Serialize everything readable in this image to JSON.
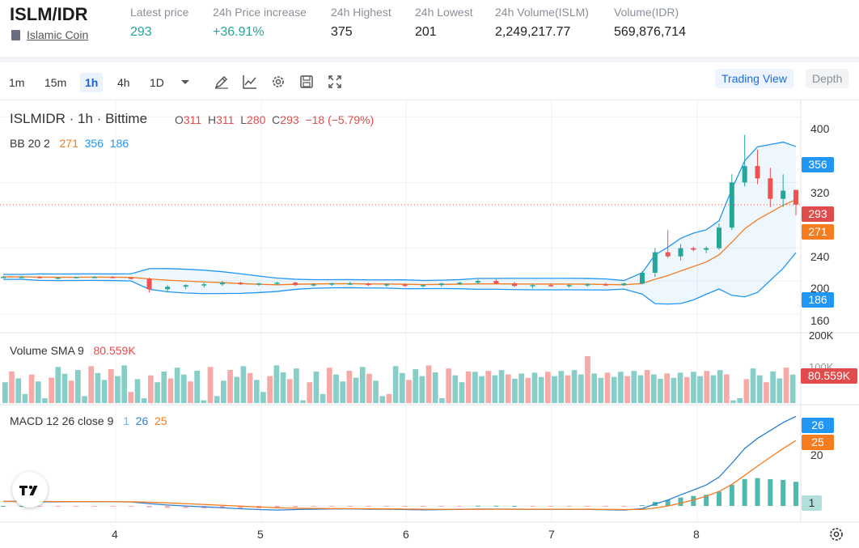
{
  "header": {
    "pair": "ISLM/IDR",
    "coin_name": "Islamic Coin",
    "stats": [
      {
        "label": "Latest price",
        "value": "293",
        "tone": "green"
      },
      {
        "label": "24h Price increase",
        "value": "+36.91%",
        "tone": "green"
      },
      {
        "label": "24h Highest",
        "value": "375",
        "tone": "normal"
      },
      {
        "label": "24h Lowest",
        "value": "201",
        "tone": "normal"
      },
      {
        "label": "24h Volume(ISLM)",
        "value": "2,249,217.77",
        "tone": "normal"
      },
      {
        "label": "Volume(IDR)",
        "value": "569,876,714",
        "tone": "normal"
      }
    ]
  },
  "toolbar": {
    "timeframes": [
      "1m",
      "15m",
      "1h",
      "4h",
      "1D"
    ],
    "active_timeframe": "1h",
    "icons": [
      "chevron-down-icon",
      "pencil-icon",
      "indicator-icon",
      "gear-icon",
      "save-icon",
      "fullscreen-icon"
    ],
    "view_tabs": [
      "Trading View",
      "Depth"
    ],
    "active_view": "Trading View"
  },
  "legend": {
    "symbol": "ISLMIDR · 1h · Bittime",
    "o_label": "O",
    "o": "311",
    "h_label": "H",
    "h": "311",
    "l_label": "L",
    "l": "280",
    "c_label": "C",
    "c": "293",
    "change": "−18 (−5.79%)",
    "bb_label": "BB 20 2",
    "bb_values": [
      "271",
      "356",
      "186"
    ],
    "vol_label": "Volume SMA 9",
    "vol_value": "80.559K",
    "macd_label": "MACD 12 26 close 9",
    "macd_values": [
      "1",
      "26",
      "25"
    ]
  },
  "axis": {
    "price_ticks": [
      "400",
      "320",
      "240",
      "200",
      "160"
    ],
    "volume_ticks": [
      "200K",
      "100K"
    ],
    "macd_ticks": [
      "20"
    ],
    "x_ticks": [
      "4",
      "5",
      "6",
      "7",
      "8"
    ],
    "tags": {
      "bb_upper": "356",
      "last_price": "293",
      "bb_basis": "271",
      "bb_lower": "186",
      "volume_sma": "80.559K",
      "macd": "26",
      "signal": "25",
      "histogram": "1"
    }
  },
  "colors": {
    "up": "#26a69a",
    "down": "#ef5350",
    "bb_basis": "#f57c1f",
    "bb_band": "#2196f3",
    "last_price": "#e04b4b",
    "accent": "#1a6fd8"
  },
  "chart_data": {
    "type": "candlestick",
    "symbol": "ISLMIDR",
    "interval": "1h",
    "x_ticks": [
      "4",
      "5",
      "6",
      "7",
      "8"
    ],
    "price_range": [
      140,
      420
    ],
    "candles_ohlc_sampled": [
      [
        205,
        206,
        204,
        205
      ],
      [
        205,
        206,
        204,
        205
      ],
      [
        205,
        206,
        203,
        204
      ],
      [
        204,
        205,
        203,
        204
      ],
      [
        204,
        205,
        203,
        205
      ],
      [
        205,
        206,
        204,
        205
      ],
      [
        205,
        206,
        204,
        204
      ],
      [
        204,
        205,
        202,
        203
      ],
      [
        203,
        204,
        186,
        190
      ],
      [
        190,
        195,
        186,
        193
      ],
      [
        193,
        196,
        190,
        195
      ],
      [
        195,
        198,
        192,
        196
      ],
      [
        196,
        200,
        194,
        198
      ],
      [
        198,
        199,
        195,
        196
      ],
      [
        196,
        198,
        194,
        197
      ],
      [
        197,
        199,
        195,
        198
      ],
      [
        198,
        199,
        194,
        195
      ],
      [
        195,
        197,
        193,
        196
      ],
      [
        196,
        198,
        194,
        197
      ],
      [
        197,
        199,
        195,
        197
      ],
      [
        197,
        198,
        194,
        195
      ],
      [
        195,
        197,
        193,
        196
      ],
      [
        196,
        197,
        193,
        194
      ],
      [
        194,
        196,
        192,
        195
      ],
      [
        195,
        198,
        193,
        197
      ],
      [
        197,
        199,
        195,
        198
      ],
      [
        198,
        202,
        196,
        200
      ],
      [
        200,
        202,
        196,
        197
      ],
      [
        197,
        199,
        193,
        194
      ],
      [
        194,
        196,
        191,
        195
      ],
      [
        195,
        197,
        193,
        194
      ],
      [
        194,
        196,
        192,
        195
      ],
      [
        195,
        197,
        193,
        196
      ],
      [
        196,
        198,
        194,
        195
      ],
      [
        195,
        198,
        194,
        197
      ],
      [
        197,
        212,
        196,
        210
      ],
      [
        210,
        240,
        205,
        235
      ],
      [
        235,
        262,
        228,
        230
      ],
      [
        230,
        245,
        225,
        240
      ],
      [
        240,
        242,
        236,
        238
      ],
      [
        238,
        242,
        234,
        240
      ],
      [
        240,
        270,
        238,
        265
      ],
      [
        265,
        330,
        262,
        320
      ],
      [
        320,
        378,
        315,
        340
      ],
      [
        340,
        360,
        318,
        325
      ],
      [
        325,
        338,
        290,
        300
      ],
      [
        300,
        330,
        290,
        310
      ],
      [
        311,
        311,
        280,
        293
      ]
    ],
    "bollinger_last": {
      "basis": 271,
      "upper": 356,
      "lower": 186
    },
    "volume_sma_last": 80559,
    "volume_range": [
      0,
      200000
    ],
    "macd_last": {
      "macd": 26,
      "signal": 25,
      "histogram": 1
    }
  }
}
